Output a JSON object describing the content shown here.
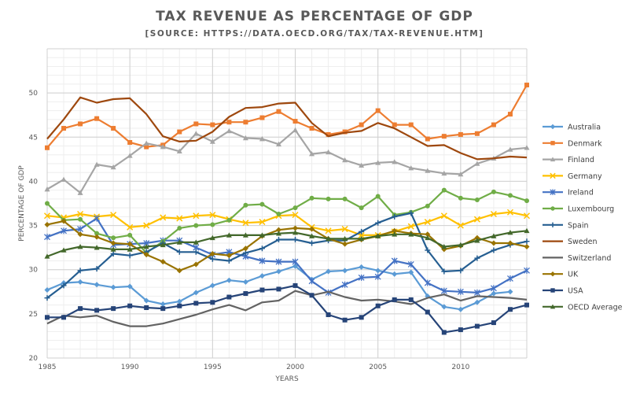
{
  "chart_data": {
    "type": "line",
    "title": "TAX REVENUE AS PERCENTAGE OF GDP",
    "subtitle": "[SOURCE: HTTPS://DATA.OECD.ORG/TAX/TAX-REVENUE.HTM]",
    "xlabel": "YEARS",
    "ylabel": "PERCENTAGE OF GDP",
    "xlim": [
      1985,
      2014
    ],
    "ylim": [
      20,
      55
    ],
    "x_ticks": [
      1985,
      1990,
      1995,
      2000,
      2005,
      2010
    ],
    "y_ticks": [
      20,
      25,
      30,
      35,
      40,
      45,
      50
    ],
    "grid": true,
    "legend_position": "right",
    "x": [
      1985,
      1986,
      1987,
      1988,
      1989,
      1990,
      1991,
      1992,
      1993,
      1994,
      1995,
      1996,
      1997,
      1998,
      1999,
      2000,
      2001,
      2002,
      2003,
      2004,
      2005,
      2006,
      2007,
      2008,
      2009,
      2010,
      2011,
      2012,
      2013,
      2014
    ],
    "series": [
      {
        "name": "Australia",
        "color": "#5B9BD5",
        "marker": "diamond",
        "values": [
          27.7,
          28.5,
          28.6,
          28.3,
          28.0,
          28.1,
          26.5,
          26.1,
          26.4,
          27.4,
          28.2,
          28.8,
          28.6,
          29.3,
          29.8,
          30.4,
          28.9,
          29.8,
          29.9,
          30.3,
          29.9,
          29.5,
          29.7,
          27.0,
          25.8,
          25.5,
          26.3,
          27.3,
          27.5,
          null
        ]
      },
      {
        "name": "Denmark",
        "color": "#ED7D31",
        "marker": "square",
        "values": [
          43.8,
          46.0,
          46.5,
          47.1,
          46.0,
          44.4,
          43.9,
          44.1,
          45.6,
          46.5,
          46.4,
          46.7,
          46.7,
          47.2,
          47.9,
          46.8,
          46.0,
          45.3,
          45.6,
          46.4,
          48.0,
          46.4,
          46.4,
          44.8,
          45.1,
          45.3,
          45.4,
          46.4,
          47.6,
          50.9
        ]
      },
      {
        "name": "Finland",
        "color": "#A5A5A5",
        "marker": "triangle",
        "values": [
          39.1,
          40.2,
          38.7,
          41.9,
          41.6,
          42.9,
          44.3,
          43.9,
          43.4,
          45.4,
          44.5,
          45.7,
          44.9,
          44.8,
          44.2,
          45.8,
          43.1,
          43.3,
          42.4,
          41.8,
          42.1,
          42.2,
          41.5,
          41.2,
          40.9,
          40.8,
          42.0,
          42.6,
          43.6,
          43.8
        ]
      },
      {
        "name": "Germany",
        "color": "#FFC000",
        "marker": "x",
        "values": [
          36.1,
          35.9,
          36.3,
          36.0,
          36.2,
          34.8,
          35.0,
          35.9,
          35.8,
          36.1,
          36.2,
          35.7,
          35.3,
          35.4,
          36.1,
          36.2,
          34.8,
          34.4,
          34.6,
          33.9,
          33.9,
          34.3,
          34.9,
          35.4,
          36.1,
          35.0,
          35.7,
          36.3,
          36.5,
          36.1
        ]
      },
      {
        "name": "Ireland",
        "color": "#4472C4",
        "marker": "asterisk",
        "values": [
          33.7,
          34.4,
          34.6,
          35.8,
          32.8,
          32.9,
          33.0,
          33.3,
          33.3,
          32.5,
          31.7,
          32.0,
          31.5,
          31.0,
          30.9,
          30.9,
          28.7,
          27.4,
          28.3,
          29.1,
          29.2,
          31.0,
          30.6,
          28.5,
          27.6,
          27.5,
          27.4,
          27.9,
          29.0,
          29.9
        ]
      },
      {
        "name": "Luxembourg",
        "color": "#70AD47",
        "marker": "circle",
        "values": [
          37.5,
          35.6,
          35.7,
          34.1,
          33.6,
          33.9,
          31.9,
          33.2,
          34.7,
          35.0,
          35.1,
          35.6,
          37.3,
          37.4,
          36.3,
          37.0,
          38.1,
          38.0,
          38.0,
          37.0,
          38.3,
          36.2,
          36.5,
          37.2,
          39.0,
          38.1,
          37.9,
          38.8,
          38.4,
          37.8
        ]
      },
      {
        "name": "Spain",
        "color": "#255E91",
        "marker": "plus",
        "values": [
          26.8,
          28.2,
          29.9,
          30.1,
          31.8,
          31.6,
          32.0,
          33.0,
          32.0,
          32.0,
          31.2,
          31.0,
          31.9,
          32.4,
          33.4,
          33.4,
          33.0,
          33.3,
          33.3,
          34.3,
          35.3,
          36.0,
          36.4,
          32.2,
          29.8,
          29.9,
          31.3,
          32.2,
          32.8,
          33.2
        ]
      },
      {
        "name": "Sweden",
        "color": "#9E480E",
        "marker": "none",
        "values": [
          44.8,
          47.0,
          49.5,
          48.9,
          49.3,
          49.4,
          47.6,
          45.1,
          44.5,
          44.6,
          45.6,
          47.3,
          48.3,
          48.4,
          48.8,
          48.9,
          46.6,
          45.1,
          45.5,
          45.7,
          46.6,
          46.0,
          45.0,
          44.0,
          44.1,
          43.2,
          42.5,
          42.6,
          42.8,
          42.7
        ]
      },
      {
        "name": "Switzerland",
        "color": "#636363",
        "marker": "none",
        "values": [
          23.9,
          24.8,
          24.6,
          24.8,
          24.1,
          23.6,
          23.6,
          23.9,
          24.4,
          24.9,
          25.5,
          26.0,
          25.4,
          26.3,
          26.5,
          27.6,
          27.1,
          27.5,
          26.9,
          26.5,
          26.6,
          26.4,
          26.1,
          26.8,
          27.2,
          26.5,
          27.0,
          26.9,
          26.8,
          26.6
        ]
      },
      {
        "name": "UK",
        "color": "#997300",
        "marker": "diamond",
        "values": [
          35.1,
          35.5,
          34.0,
          33.7,
          33.0,
          32.9,
          31.7,
          30.9,
          29.9,
          30.6,
          31.8,
          31.6,
          32.4,
          33.8,
          34.5,
          34.7,
          34.6,
          33.5,
          32.9,
          33.4,
          33.8,
          34.4,
          34.1,
          34.0,
          32.3,
          32.7,
          33.6,
          33.0,
          33.0,
          32.6
        ]
      },
      {
        "name": "USA",
        "color": "#264478",
        "marker": "square",
        "values": [
          24.6,
          24.6,
          25.6,
          25.4,
          25.6,
          25.9,
          25.7,
          25.6,
          25.9,
          26.2,
          26.3,
          26.9,
          27.3,
          27.7,
          27.8,
          28.2,
          27.1,
          24.9,
          24.3,
          24.6,
          25.9,
          26.6,
          26.6,
          25.2,
          22.9,
          23.2,
          23.6,
          24.0,
          25.5,
          26.0
        ]
      },
      {
        "name": "OECD Average",
        "color": "#43682B",
        "marker": "triangle",
        "values": [
          31.5,
          32.2,
          32.6,
          32.5,
          32.3,
          32.3,
          32.6,
          32.8,
          33.1,
          33.1,
          33.6,
          33.9,
          33.9,
          33.9,
          34.1,
          34.2,
          33.8,
          33.5,
          33.5,
          33.5,
          33.8,
          34.0,
          34.0,
          33.6,
          32.6,
          32.8,
          33.3,
          33.8,
          34.2,
          34.4
        ]
      }
    ]
  }
}
